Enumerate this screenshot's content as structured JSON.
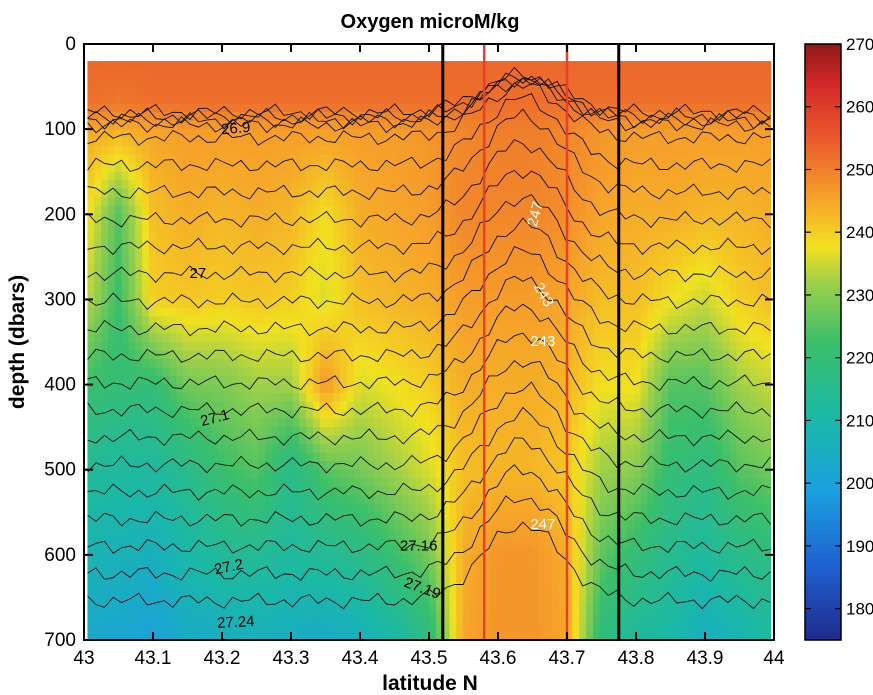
{
  "chart_data": {
    "type": "heatmap",
    "title": "Oxygen microM/kg",
    "xlabel": "latitude N",
    "ylabel": "depth  (dbars)",
    "xlim": [
      43,
      44
    ],
    "ylim": [
      0,
      700
    ],
    "y_reversed": true,
    "x_ticks": [
      "43",
      "43.1",
      "43.2",
      "43.3",
      "43.4",
      "43.5",
      "43.6",
      "43.7",
      "43.8",
      "43.9",
      "44"
    ],
    "y_ticks": [
      "0",
      "100",
      "200",
      "300",
      "400",
      "500",
      "600",
      "700"
    ],
    "data_extent": {
      "depth_top": 20,
      "depth_bottom": 700,
      "lat_left": 43.005,
      "lat_right": 43.995
    },
    "colorbar": {
      "min": 175,
      "max": 270,
      "ticks": [
        "180",
        "190",
        "200",
        "210",
        "220",
        "230",
        "240",
        "250",
        "260",
        "270"
      ],
      "colormap": "jet"
    },
    "vertical_lines": [
      {
        "x": 43.52,
        "color": "#000000"
      },
      {
        "x": 43.58,
        "color": "#e8402a"
      },
      {
        "x": 43.7,
        "color": "#e8402a"
      },
      {
        "x": 43.775,
        "color": "#000000"
      }
    ],
    "contour_labels": [
      {
        "text": "26.9",
        "x": 43.22,
        "y": 100,
        "color": "#000000",
        "rotate": -5
      },
      {
        "text": "27",
        "x": 43.165,
        "y": 270,
        "color": "#000000",
        "rotate": 0
      },
      {
        "text": "27.1",
        "x": 43.19,
        "y": 440,
        "color": "#000000",
        "rotate": -15
      },
      {
        "text": "27.16",
        "x": 43.485,
        "y": 590,
        "color": "#000000",
        "rotate": 0
      },
      {
        "text": "27.19",
        "x": 43.49,
        "y": 640,
        "color": "#000000",
        "rotate": 20
      },
      {
        "text": "27.2",
        "x": 43.21,
        "y": 615,
        "color": "#000000",
        "rotate": -12
      },
      {
        "text": "27.24",
        "x": 43.22,
        "y": 680,
        "color": "#000000",
        "rotate": -3
      },
      {
        "text": "247",
        "x": 43.655,
        "y": 200,
        "color": "#ffffff",
        "rotate": -75
      },
      {
        "text": "243",
        "x": 43.665,
        "y": 295,
        "color": "#ffffff",
        "rotate": 60
      },
      {
        "text": "243",
        "x": 43.665,
        "y": 350,
        "color": "#ffffff",
        "rotate": 0
      },
      {
        "text": "247",
        "x": 43.665,
        "y": 565,
        "color": "#ffffff",
        "rotate": 0
      }
    ],
    "oxygen_profiles": [
      {
        "lat": 43.0,
        "depth": [
          20,
          70,
          100,
          200,
          300,
          400,
          500,
          600,
          700
        ],
        "value": [
          253,
          252,
          245,
          240,
          236,
          222,
          214,
          208,
          203
        ]
      },
      {
        "lat": 43.05,
        "depth": [
          20,
          70,
          100,
          200,
          300,
          400,
          500,
          600,
          700
        ],
        "value": [
          253,
          251,
          244,
          225,
          222,
          220,
          212,
          207,
          202
        ]
      },
      {
        "lat": 43.1,
        "depth": [
          20,
          70,
          100,
          200,
          300,
          400,
          500,
          600,
          700
        ],
        "value": [
          253,
          252,
          245,
          242,
          240,
          220,
          212,
          206,
          200
        ]
      },
      {
        "lat": 43.15,
        "depth": [
          20,
          70,
          100,
          200,
          300,
          400,
          500,
          600,
          700
        ],
        "value": [
          253,
          252,
          246,
          244,
          241,
          228,
          216,
          210,
          204
        ]
      },
      {
        "lat": 43.2,
        "depth": [
          20,
          70,
          100,
          200,
          300,
          400,
          500,
          600,
          700
        ],
        "value": [
          253,
          252,
          246,
          243,
          240,
          229,
          222,
          213,
          205
        ]
      },
      {
        "lat": 43.25,
        "depth": [
          20,
          70,
          100,
          200,
          300,
          400,
          500,
          600,
          700
        ],
        "value": [
          253,
          252,
          246,
          244,
          241,
          232,
          225,
          214,
          206
        ]
      },
      {
        "lat": 43.3,
        "depth": [
          20,
          70,
          100,
          200,
          300,
          400,
          500,
          600,
          700
        ],
        "value": [
          253,
          252,
          246,
          243,
          240,
          232,
          216,
          212,
          205
        ]
      },
      {
        "lat": 43.35,
        "depth": [
          20,
          70,
          100,
          200,
          300,
          400,
          500,
          600,
          700
        ],
        "value": [
          253,
          252,
          246,
          238,
          236,
          247,
          225,
          214,
          204
        ]
      },
      {
        "lat": 43.4,
        "depth": [
          20,
          70,
          100,
          200,
          300,
          400,
          500,
          600,
          700
        ],
        "value": [
          253,
          252,
          246,
          244,
          242,
          236,
          228,
          216,
          206
        ]
      },
      {
        "lat": 43.45,
        "depth": [
          20,
          70,
          100,
          200,
          300,
          400,
          500,
          600,
          700
        ],
        "value": [
          253,
          252,
          246,
          245,
          243,
          238,
          232,
          222,
          210
        ]
      },
      {
        "lat": 43.5,
        "depth": [
          20,
          70,
          100,
          200,
          300,
          400,
          500,
          600,
          700
        ],
        "value": [
          253,
          252,
          247,
          246,
          244,
          240,
          236,
          228,
          218
        ]
      },
      {
        "lat": 43.55,
        "depth": [
          20,
          70,
          100,
          200,
          300,
          400,
          500,
          600,
          700
        ],
        "value": [
          253,
          252,
          249,
          249,
          246,
          244,
          242,
          244,
          245
        ]
      },
      {
        "lat": 43.6,
        "depth": [
          20,
          70,
          100,
          200,
          300,
          400,
          500,
          600,
          700
        ],
        "value": [
          253,
          252,
          250,
          249,
          246,
          244,
          243,
          247,
          247
        ]
      },
      {
        "lat": 43.65,
        "depth": [
          20,
          70,
          100,
          200,
          300,
          400,
          500,
          600,
          700
        ],
        "value": [
          253,
          252,
          250,
          249,
          246,
          244,
          243,
          247,
          247
        ]
      },
      {
        "lat": 43.7,
        "depth": [
          20,
          70,
          100,
          200,
          300,
          400,
          500,
          600,
          700
        ],
        "value": [
          253,
          252,
          249,
          248,
          245,
          243,
          241,
          244,
          245
        ]
      },
      {
        "lat": 43.75,
        "depth": [
          20,
          70,
          100,
          200,
          300,
          400,
          500,
          600,
          700
        ],
        "value": [
          253,
          252,
          247,
          245,
          242,
          238,
          232,
          226,
          218
        ]
      },
      {
        "lat": 43.8,
        "depth": [
          20,
          70,
          100,
          200,
          300,
          400,
          500,
          600,
          700
        ],
        "value": [
          253,
          252,
          246,
          244,
          242,
          238,
          230,
          220,
          212
        ]
      },
      {
        "lat": 43.85,
        "depth": [
          20,
          70,
          100,
          200,
          300,
          400,
          500,
          600,
          700
        ],
        "value": [
          253,
          252,
          246,
          244,
          238,
          225,
          220,
          215,
          210
        ]
      },
      {
        "lat": 43.9,
        "depth": [
          20,
          70,
          100,
          200,
          300,
          400,
          500,
          600,
          700
        ],
        "value": [
          253,
          252,
          246,
          243,
          235,
          225,
          218,
          212,
          205
        ]
      },
      {
        "lat": 43.95,
        "depth": [
          20,
          70,
          100,
          200,
          300,
          400,
          500,
          600,
          700
        ],
        "value": [
          253,
          252,
          246,
          243,
          240,
          232,
          225,
          216,
          208
        ]
      },
      {
        "lat": 44.0,
        "depth": [
          20,
          70,
          100,
          200,
          300,
          400,
          500,
          600,
          700
        ],
        "value": [
          253,
          252,
          246,
          244,
          242,
          235,
          228,
          218,
          212
        ]
      }
    ]
  }
}
